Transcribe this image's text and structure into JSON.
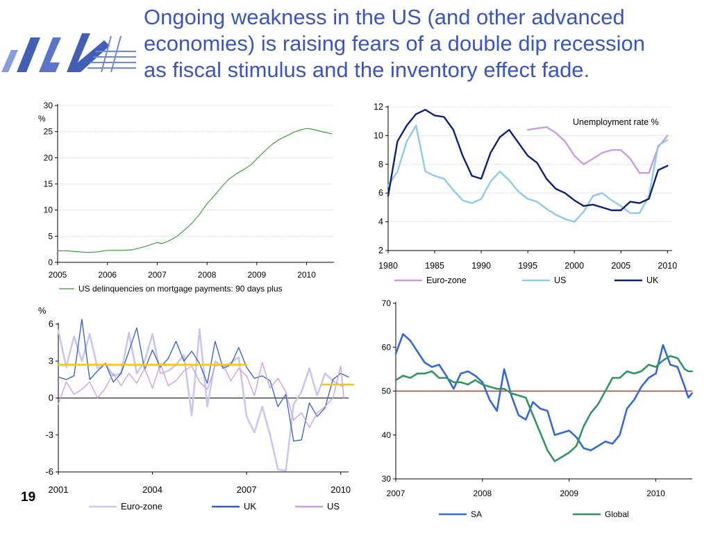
{
  "slide": {
    "title_lines": [
      "Ongoing weakness in the US (and other advanced",
      "economies) is raising fears of a double dip recession",
      "as fiscal stimulus and the inventory effect fade."
    ],
    "page_number": "19",
    "colors": {
      "title": "#3a55c2"
    }
  },
  "chart_data": [
    {
      "id": "mortgage",
      "type": "line",
      "ylabel": "%",
      "xlim": [
        2005,
        2010.55
      ],
      "ylim": [
        0,
        30
      ],
      "yticks": [
        0,
        5,
        10,
        15,
        20,
        25,
        30
      ],
      "xticks": [
        2005,
        2006,
        2007,
        2008,
        2009,
        2010
      ],
      "grid": true,
      "legend_position": "bottom",
      "series": [
        {
          "name": "US delinquencies on mortgage payments: 90 days plus",
          "color": "#2e9a2e",
          "x": [
            2005,
            2005.2,
            2005.45,
            2005.6,
            2005.8,
            2006,
            2006.3,
            2006.5,
            2006.75,
            2007,
            2007.1,
            2007.25,
            2007.4,
            2007.55,
            2007.7,
            2007.85,
            2008,
            2008.15,
            2008.3,
            2008.45,
            2008.6,
            2008.75,
            2008.9,
            2009,
            2009.15,
            2009.3,
            2009.45,
            2009.6,
            2009.75,
            2009.9,
            2010,
            2010.15,
            2010.3,
            2010.5
          ],
          "y": [
            2.2,
            2.2,
            2.0,
            1.9,
            2.0,
            2.3,
            2.3,
            2.4,
            3.0,
            3.8,
            3.6,
            4.2,
            5.0,
            6.2,
            7.5,
            9.2,
            11.2,
            12.8,
            14.5,
            16.0,
            17.0,
            17.8,
            18.8,
            19.8,
            21.2,
            22.5,
            23.5,
            24.2,
            24.9,
            25.4,
            25.6,
            25.4,
            25.0,
            24.6
          ]
        }
      ]
    },
    {
      "id": "unemployment",
      "type": "line",
      "annotation": "Unemployment rate %",
      "xlim": [
        1980,
        2010.5
      ],
      "ylim": [
        2,
        12
      ],
      "yticks": [
        2,
        4,
        6,
        8,
        10,
        12
      ],
      "xticks": [
        1980,
        1985,
        1990,
        1995,
        2000,
        2005,
        2010
      ],
      "grid": true,
      "legend_position": "bottom",
      "series": [
        {
          "name": "Euro-zone",
          "color": "#c99be0",
          "x": [
            1995,
            1996,
            1997,
            1998,
            1999,
            2000,
            2001,
            2002,
            2003,
            2004,
            2005,
            2006,
            2007,
            2008,
            2009,
            2010
          ],
          "y": [
            10.4,
            10.5,
            10.6,
            10.2,
            9.6,
            8.6,
            8.0,
            8.4,
            8.8,
            9.0,
            9.0,
            8.4,
            7.4,
            7.4,
            9.2,
            10.0
          ]
        },
        {
          "name": "US",
          "color": "#8fc8ee",
          "x": [
            1980,
            1981,
            1982,
            1983,
            1984,
            1985,
            1986,
            1987,
            1988,
            1989,
            1990,
            1991,
            1992,
            1993,
            1994,
            1995,
            1996,
            1997,
            1998,
            1999,
            2000,
            2001,
            2002,
            2003,
            2004,
            2005,
            2006,
            2007,
            2008,
            2009,
            2010
          ],
          "y": [
            6.5,
            7.5,
            9.6,
            10.7,
            7.5,
            7.2,
            7.0,
            6.2,
            5.5,
            5.3,
            5.6,
            6.8,
            7.5,
            6.9,
            6.1,
            5.6,
            5.4,
            4.9,
            4.5,
            4.2,
            4.0,
            4.7,
            5.8,
            6.0,
            5.5,
            5.1,
            4.6,
            4.6,
            5.8,
            9.3,
            9.7
          ]
        },
        {
          "name": "UK",
          "color": "#0c1f78",
          "x": [
            1980,
            1981,
            1982,
            1983,
            1984,
            1985,
            1986,
            1987,
            1988,
            1989,
            1990,
            1991,
            1992,
            1993,
            1994,
            1995,
            1996,
            1997,
            1998,
            1999,
            2000,
            2001,
            2002,
            2003,
            2004,
            2005,
            2006,
            2007,
            2008,
            2009,
            2010
          ],
          "y": [
            5.8,
            9.6,
            10.7,
            11.5,
            11.8,
            11.4,
            11.3,
            10.4,
            8.6,
            7.2,
            7.0,
            8.8,
            9.9,
            10.4,
            9.5,
            8.6,
            8.1,
            7.0,
            6.3,
            6.0,
            5.5,
            5.1,
            5.2,
            5.0,
            4.8,
            4.8,
            5.4,
            5.3,
            5.6,
            7.6,
            7.9
          ]
        }
      ]
    },
    {
      "id": "gdp-growth",
      "type": "line",
      "ylabel": "%",
      "xlim": [
        2001,
        2010.25
      ],
      "ylim": [
        -6,
        6
      ],
      "yticks": [
        -6,
        -3,
        0,
        3,
        6
      ],
      "xticks": [
        2001,
        2004,
        2007,
        2010
      ],
      "grid": false,
      "legend_position": "bottom",
      "series": [
        {
          "name": "Euro-zone",
          "color": "#c8c6f2",
          "x": [
            2001,
            2001.25,
            2001.5,
            2001.75,
            2002,
            2002.25,
            2002.5,
            2002.75,
            2003,
            2003.25,
            2003.5,
            2003.75,
            2004,
            2004.25,
            2004.5,
            2004.75,
            2005,
            2005.25,
            2005.5,
            2005.75,
            2006,
            2006.25,
            2006.5,
            2006.75,
            2007,
            2007.25,
            2007.5,
            2007.75,
            2008,
            2008.25,
            2008.5,
            2008.75,
            2009,
            2009.25,
            2009.5,
            2009.75,
            2010,
            2010.1
          ],
          "y": [
            5.5,
            2.5,
            5.0,
            3.0,
            5.2,
            2.4,
            2.8,
            1.8,
            2.0,
            5.3,
            2.0,
            3.0,
            5.2,
            2.0,
            2.2,
            2.7,
            3.5,
            -1.4,
            5.6,
            -0.7,
            3.0,
            2.5,
            2.9,
            3.3,
            -1.5,
            -2.8,
            -0.7,
            -3.0,
            -5.8,
            -5.9,
            -0.5,
            0.5,
            2.4,
            0.2,
            2.0,
            1.4,
            1.0,
            1.0
          ]
        },
        {
          "name": "UK",
          "color": "#2e5ec6",
          "x": [
            2001,
            2001.25,
            2001.5,
            2001.75,
            2002,
            2002.25,
            2002.5,
            2002.75,
            2003,
            2003.25,
            2003.5,
            2003.75,
            2004,
            2004.25,
            2004.5,
            2004.75,
            2005,
            2005.25,
            2005.5,
            2005.75,
            2006,
            2006.25,
            2006.5,
            2006.75,
            2007,
            2007.25,
            2007.5,
            2007.75,
            2008,
            2008.25,
            2008.5,
            2008.75,
            2009,
            2009.25,
            2009.5,
            2009.75,
            2010,
            2010.25
          ],
          "y": [
            1.7,
            1.5,
            1.8,
            6.4,
            1.5,
            2.2,
            2.8,
            1.3,
            2.0,
            3.8,
            5.7,
            2.3,
            3.9,
            2.5,
            3.2,
            4.6,
            3.0,
            3.8,
            2.8,
            1.2,
            4.6,
            2.4,
            2.7,
            4.1,
            2.5,
            1.6,
            1.8,
            1.4,
            -0.7,
            0.3,
            -3.5,
            -3.4,
            -0.4,
            -1.5,
            -0.8,
            1.5,
            2.0,
            1.7
          ]
        },
        {
          "name": "US",
          "color": "#cc9ae0",
          "x": [
            2001,
            2001.25,
            2001.5,
            2001.75,
            2002,
            2002.25,
            2002.5,
            2002.75,
            2003,
            2003.25,
            2003.5,
            2003.75,
            2004,
            2004.25,
            2004.5,
            2004.75,
            2005,
            2005.25,
            2005.5,
            2005.75,
            2006,
            2006.25,
            2006.5,
            2006.75,
            2007,
            2007.25,
            2007.5,
            2007.75,
            2008,
            2008.25,
            2008.5,
            2008.75,
            2009,
            2009.25,
            2009.5,
            2009.75,
            2010,
            2010.1
          ],
          "y": [
            -0.5,
            1.3,
            0.3,
            0.7,
            1.3,
            0.0,
            0.8,
            2.0,
            1.0,
            2.0,
            1.2,
            2.4,
            0.8,
            2.8,
            1.0,
            1.4,
            2.2,
            2.6,
            1.3,
            0.7,
            2.6,
            2.7,
            1.4,
            2.4,
            1.8,
            0.2,
            2.9,
            0.8,
            1.6,
            0.5,
            -1.8,
            -1.2,
            -2.4,
            -1.2,
            -0.7,
            0.0,
            2.6,
            0.0
          ]
        },
        {
          "name": "",
          "color": "#f5c518",
          "role": "average",
          "x": [
            2001,
            2007
          ],
          "y": [
            2.7,
            2.7
          ]
        },
        {
          "name": "",
          "color": "#f5c518",
          "role": "average",
          "x": [
            2009.4,
            2010.4
          ],
          "y": [
            1.1,
            1.1
          ]
        }
      ]
    },
    {
      "id": "pmi",
      "type": "line",
      "xlim": [
        2007,
        2010.42
      ],
      "ylim": [
        30,
        70
      ],
      "yticks": [
        30,
        40,
        50,
        60,
        70
      ],
      "xticks": [
        2007,
        2008,
        2009,
        2010
      ],
      "grid": false,
      "legend_position": "bottom",
      "reference_line": {
        "y": 50,
        "color": "#cc2a1a"
      },
      "series": [
        {
          "name": "SA",
          "color": "#3366dd",
          "x": [
            2007,
            2007.083,
            2007.167,
            2007.25,
            2007.333,
            2007.417,
            2007.5,
            2007.583,
            2007.667,
            2007.75,
            2007.833,
            2007.917,
            2008,
            2008.083,
            2008.167,
            2008.25,
            2008.333,
            2008.417,
            2008.5,
            2008.583,
            2008.667,
            2008.75,
            2008.833,
            2008.917,
            2009,
            2009.083,
            2009.167,
            2009.25,
            2009.333,
            2009.417,
            2009.5,
            2009.583,
            2009.667,
            2009.75,
            2009.833,
            2009.917,
            2010,
            2010.083,
            2010.167,
            2010.25,
            2010.333,
            2010.375,
            2010.417
          ],
          "y": [
            58.5,
            63,
            61.5,
            59,
            56.5,
            55.5,
            56,
            53.5,
            50.5,
            54,
            54.5,
            53.5,
            52,
            48,
            45.5,
            55,
            49,
            44.5,
            43.5,
            47.5,
            46,
            45.5,
            40,
            40.5,
            41,
            39.5,
            37,
            36.5,
            37.5,
            38.5,
            38,
            40,
            46,
            48,
            51,
            53,
            54,
            60.5,
            56,
            55.5,
            51,
            48.5,
            49.5
          ]
        },
        {
          "name": "Global",
          "color": "#2f9460",
          "x": [
            2007,
            2007.083,
            2007.167,
            2007.25,
            2007.333,
            2007.417,
            2007.5,
            2007.583,
            2007.667,
            2007.75,
            2007.833,
            2007.917,
            2008,
            2008.083,
            2008.167,
            2008.25,
            2008.333,
            2008.417,
            2008.5,
            2008.583,
            2008.667,
            2008.75,
            2008.833,
            2008.917,
            2009,
            2009.083,
            2009.167,
            2009.25,
            2009.333,
            2009.417,
            2009.5,
            2009.583,
            2009.667,
            2009.75,
            2009.833,
            2009.917,
            2010,
            2010.083,
            2010.167,
            2010.25,
            2010.333,
            2010.375,
            2010.417
          ],
          "y": [
            52.5,
            53.5,
            53,
            54,
            54,
            54.5,
            53,
            53,
            52,
            52,
            51.5,
            52.5,
            51.5,
            51,
            50.5,
            50.5,
            49.5,
            49,
            48.5,
            44.5,
            40.5,
            36.5,
            34,
            35,
            36,
            37.5,
            42,
            45,
            47,
            50,
            53,
            53,
            54.5,
            54,
            54.5,
            56,
            55.5,
            57,
            58,
            57.5,
            55,
            54.5,
            54.5
          ]
        }
      ]
    }
  ]
}
